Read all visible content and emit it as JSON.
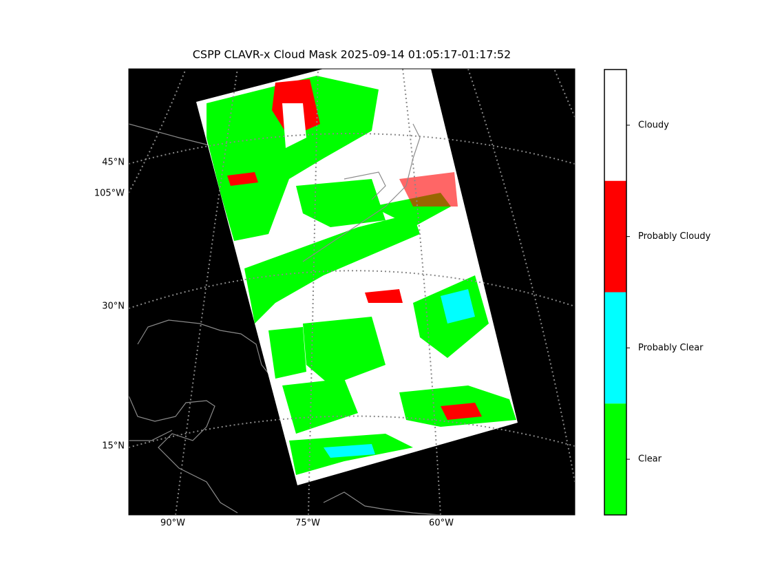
{
  "title": "CSPP CLAVR-x Cloud Mask 2025-09-14 01:05:17-01:17:52",
  "map": {
    "lat_labels": [
      "45°N",
      "30°N",
      "15°N"
    ],
    "lon_label_left": "105°W",
    "lon_labels_bottom": [
      "90°W",
      "75°W",
      "60°W"
    ]
  },
  "colorbar": {
    "categories": [
      {
        "label": "Cloudy",
        "color": "#ffffff"
      },
      {
        "label": "Probably Cloudy",
        "color": "#ff0000"
      },
      {
        "label": "Probably Clear",
        "color": "#00ffff"
      },
      {
        "label": "Clear",
        "color": "#00ff00"
      }
    ]
  }
}
